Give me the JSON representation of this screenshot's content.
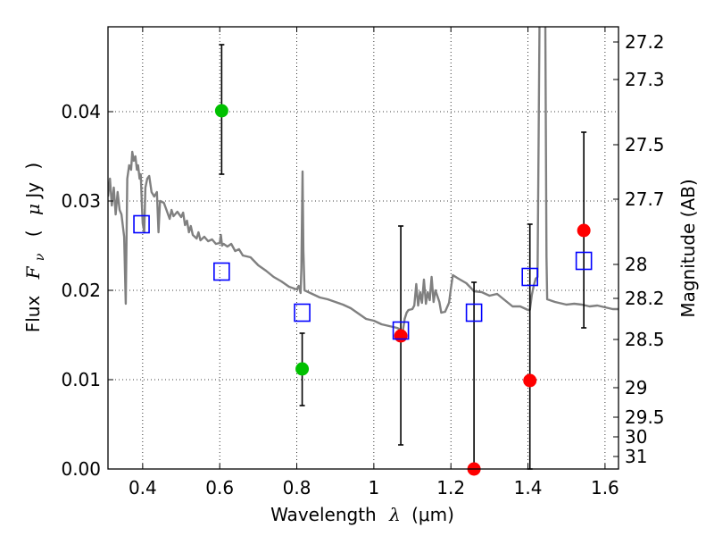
{
  "chart_data": {
    "type": "scatter",
    "xlabel": "Wavelength  λ (μm)",
    "xlabel_parts": {
      "text": "Wavelength",
      "symbol": "λ",
      "unit": "(μm)"
    },
    "ylabel": "Flux  Fν  ( μJy )",
    "ylabel_parts": {
      "text": "Flux",
      "symbol": "F",
      "subscript": "ν",
      "unit_open": "(",
      "mu": "μ",
      "unit": "Jy",
      "unit_close": ")"
    },
    "y2label": "Magnitude (AB)",
    "xlim": [
      0.31,
      1.635
    ],
    "ylim": [
      0.0,
      0.0495
    ],
    "xticks": [
      0.4,
      0.6,
      0.8,
      1.0,
      1.2,
      1.4,
      1.6
    ],
    "xtick_labels": [
      "0.4",
      "0.6",
      "0.8",
      "1",
      "1.2",
      "1.4",
      "1.6"
    ],
    "yticks": [
      0.0,
      0.01,
      0.02,
      0.03,
      0.04
    ],
    "ytick_labels": [
      "0.00",
      "0.01",
      "0.02",
      "0.03",
      "0.04"
    ],
    "magnitude_ticks": [
      {
        "label": "27.2",
        "flux": 0.0478
      },
      {
        "label": "27.3",
        "flux": 0.0436
      },
      {
        "label": "27.5",
        "flux": 0.0363
      },
      {
        "label": "27.7",
        "flux": 0.0302
      },
      {
        "label": "28",
        "flux": 0.0229
      },
      {
        "label": "28.2",
        "flux": 0.0191
      },
      {
        "label": "28.5",
        "flux": 0.0145
      },
      {
        "label": "29",
        "flux": 0.0091
      },
      {
        "label": "29.5",
        "flux": 0.0058
      },
      {
        "label": "30",
        "flux": 0.0036
      },
      {
        "label": "31",
        "flux": 0.0014
      }
    ],
    "grid": true,
    "series": [
      {
        "name": "Model SED",
        "kind": "line",
        "color": "#808080",
        "points": [
          [
            0.31,
            0.0305
          ],
          [
            0.315,
            0.0325
          ],
          [
            0.32,
            0.0295
          ],
          [
            0.325,
            0.0315
          ],
          [
            0.33,
            0.0285
          ],
          [
            0.335,
            0.031
          ],
          [
            0.34,
            0.029
          ],
          [
            0.345,
            0.0285
          ],
          [
            0.352,
            0.026
          ],
          [
            0.356,
            0.0185
          ],
          [
            0.36,
            0.0325
          ],
          [
            0.365,
            0.034
          ],
          [
            0.37,
            0.0335
          ],
          [
            0.373,
            0.0355
          ],
          [
            0.377,
            0.0345
          ],
          [
            0.381,
            0.035
          ],
          [
            0.385,
            0.0335
          ],
          [
            0.388,
            0.034
          ],
          [
            0.392,
            0.0325
          ],
          [
            0.395,
            0.033
          ],
          [
            0.398,
            0.0295
          ],
          [
            0.4,
            0.0275
          ],
          [
            0.404,
            0.0265
          ],
          [
            0.407,
            0.0315
          ],
          [
            0.412,
            0.0325
          ],
          [
            0.417,
            0.0328
          ],
          [
            0.423,
            0.031
          ],
          [
            0.43,
            0.0305
          ],
          [
            0.437,
            0.031
          ],
          [
            0.441,
            0.0265
          ],
          [
            0.445,
            0.03
          ],
          [
            0.455,
            0.0298
          ],
          [
            0.46,
            0.0292
          ],
          [
            0.47,
            0.028
          ],
          [
            0.475,
            0.029
          ],
          [
            0.48,
            0.0283
          ],
          [
            0.49,
            0.0288
          ],
          [
            0.5,
            0.0282
          ],
          [
            0.505,
            0.0287
          ],
          [
            0.51,
            0.0273
          ],
          [
            0.515,
            0.0278
          ],
          [
            0.52,
            0.0265
          ],
          [
            0.525,
            0.0272
          ],
          [
            0.53,
            0.0262
          ],
          [
            0.54,
            0.0258
          ],
          [
            0.545,
            0.0265
          ],
          [
            0.55,
            0.0256
          ],
          [
            0.56,
            0.026
          ],
          [
            0.57,
            0.0255
          ],
          [
            0.58,
            0.0257
          ],
          [
            0.59,
            0.0252
          ],
          [
            0.6,
            0.0253
          ],
          [
            0.603,
            0.0262
          ],
          [
            0.606,
            0.025
          ],
          [
            0.61,
            0.0252
          ],
          [
            0.62,
            0.0249
          ],
          [
            0.63,
            0.0252
          ],
          [
            0.64,
            0.0244
          ],
          [
            0.65,
            0.0246
          ],
          [
            0.66,
            0.0239
          ],
          [
            0.68,
            0.0237
          ],
          [
            0.7,
            0.0228
          ],
          [
            0.72,
            0.0222
          ],
          [
            0.74,
            0.0215
          ],
          [
            0.76,
            0.021
          ],
          [
            0.78,
            0.0204
          ],
          [
            0.8,
            0.0201
          ],
          [
            0.805,
            0.0205
          ],
          [
            0.81,
            0.0197
          ],
          [
            0.812,
            0.0225
          ],
          [
            0.815,
            0.0333
          ],
          [
            0.817,
            0.0245
          ],
          [
            0.82,
            0.02
          ],
          [
            0.84,
            0.0196
          ],
          [
            0.86,
            0.0192
          ],
          [
            0.88,
            0.019
          ],
          [
            0.9,
            0.0187
          ],
          [
            0.92,
            0.0184
          ],
          [
            0.94,
            0.018
          ],
          [
            0.96,
            0.0174
          ],
          [
            0.98,
            0.0168
          ],
          [
            1.0,
            0.0166
          ],
          [
            1.02,
            0.0162
          ],
          [
            1.04,
            0.016
          ],
          [
            1.06,
            0.0158
          ],
          [
            1.065,
            0.0157
          ],
          [
            1.07,
            0.0152
          ],
          [
            1.075,
            0.0153
          ],
          [
            1.08,
            0.0168
          ],
          [
            1.085,
            0.0175
          ],
          [
            1.09,
            0.0178
          ],
          [
            1.1,
            0.0179
          ],
          [
            1.105,
            0.0183
          ],
          [
            1.11,
            0.0207
          ],
          [
            1.115,
            0.0183
          ],
          [
            1.12,
            0.0198
          ],
          [
            1.125,
            0.0186
          ],
          [
            1.13,
            0.0212
          ],
          [
            1.135,
            0.0185
          ],
          [
            1.14,
            0.0198
          ],
          [
            1.145,
            0.0189
          ],
          [
            1.15,
            0.0215
          ],
          [
            1.155,
            0.0187
          ],
          [
            1.16,
            0.02
          ],
          [
            1.17,
            0.0187
          ],
          [
            1.175,
            0.0175
          ],
          [
            1.185,
            0.0176
          ],
          [
            1.195,
            0.0186
          ],
          [
            1.2,
            0.0202
          ],
          [
            1.205,
            0.0217
          ],
          [
            1.22,
            0.0213
          ],
          [
            1.24,
            0.0208
          ],
          [
            1.26,
            0.0199
          ],
          [
            1.28,
            0.0198
          ],
          [
            1.3,
            0.0194
          ],
          [
            1.32,
            0.0196
          ],
          [
            1.34,
            0.0189
          ],
          [
            1.36,
            0.0182
          ],
          [
            1.38,
            0.0182
          ],
          [
            1.4,
            0.0178
          ],
          [
            1.405,
            0.0178
          ],
          [
            1.41,
            0.0195
          ],
          [
            1.415,
            0.0205
          ],
          [
            1.42,
            0.0213
          ],
          [
            1.425,
            0.0215
          ],
          [
            1.43,
            0.05
          ],
          [
            1.44,
            0.05
          ],
          [
            1.445,
            0.05
          ],
          [
            1.448,
            0.0238
          ],
          [
            1.45,
            0.019
          ],
          [
            1.47,
            0.0187
          ],
          [
            1.5,
            0.0184
          ],
          [
            1.52,
            0.0185
          ],
          [
            1.54,
            0.0184
          ],
          [
            1.56,
            0.0182
          ],
          [
            1.58,
            0.0183
          ],
          [
            1.6,
            0.0181
          ],
          [
            1.62,
            0.0179
          ],
          [
            1.635,
            0.0179
          ]
        ]
      },
      {
        "name": "Observed (green)",
        "kind": "scatter",
        "color": "#00c000",
        "points": [
          {
            "x": 0.605,
            "y": 0.0401,
            "err_low": 0.033,
            "err_high": 0.0475
          },
          {
            "x": 0.814,
            "y": 0.0112,
            "err_low": 0.0071,
            "err_high": 0.0152
          }
        ]
      },
      {
        "name": "Observed (red)",
        "kind": "scatter",
        "color": "#ff0000",
        "points": [
          {
            "x": 1.07,
            "y": 0.0149,
            "err_low": 0.0027,
            "err_high": 0.0272
          },
          {
            "x": 1.26,
            "y": 0.0,
            "err_low": 0.0,
            "err_high": 0.0209
          },
          {
            "x": 1.405,
            "y": 0.0099,
            "err_low": 0.0,
            "err_high": 0.0274
          },
          {
            "x": 1.545,
            "y": 0.0267,
            "err_low": 0.0158,
            "err_high": 0.0377
          }
        ]
      },
      {
        "name": "Model photometry",
        "kind": "scatter-open-square",
        "color": "#0000ff",
        "points": [
          {
            "x": 0.397,
            "y": 0.0274
          },
          {
            "x": 0.605,
            "y": 0.0221
          },
          {
            "x": 0.814,
            "y": 0.0175
          },
          {
            "x": 1.07,
            "y": 0.0155
          },
          {
            "x": 1.26,
            "y": 0.0175
          },
          {
            "x": 1.405,
            "y": 0.0215
          },
          {
            "x": 1.545,
            "y": 0.0233
          }
        ]
      }
    ]
  }
}
